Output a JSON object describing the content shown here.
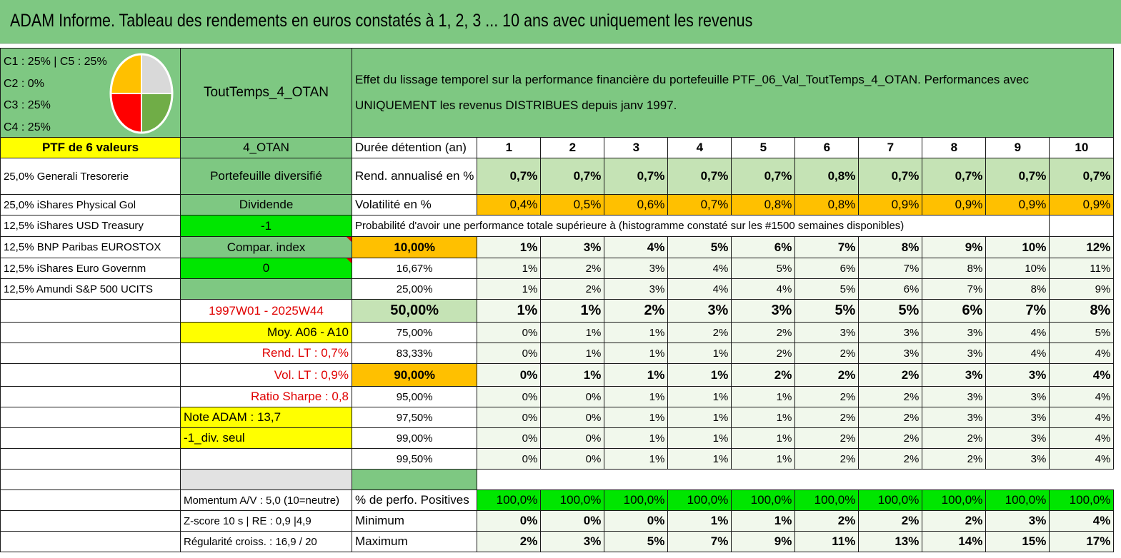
{
  "title": "ADAM Informe. Tableau des rendements en euros constatés à 1, 2, 3 ... 10 ans avec uniquement les revenus",
  "allocation": {
    "lines": [
      "C1 : 25% | C5 : 25%",
      "C2 : 0%",
      "C3 : 25%",
      "C4 : 25%"
    ],
    "pie_colors": [
      "#d9d9d9",
      "#70ad47",
      "#ff0000",
      "#ffc000"
    ],
    "pie_shares": [
      25,
      25,
      25,
      25
    ]
  },
  "portfolio_name": "ToutTemps_4_OTAN",
  "description": "Effet du lissage temporel sur la performance financière du portefeuille PTF_06_Val_ToutTemps_4_OTAN. Performances avec UNIQUEMENT les revenus DISTRIBUES depuis janv 1997.",
  "ptf_label": "PTF de 6 valeurs",
  "code": "4_OTAN",
  "duree_label": "Durée détention (an)",
  "years": [
    "1",
    "2",
    "3",
    "4",
    "5",
    "6",
    "7",
    "8",
    "9",
    "10"
  ],
  "holdings": [
    "25,0% Generali Tresorerie",
    "25,0% iShares Physical Gol",
    "12,5% iShares USD Treasury",
    "12,5% BNP Paribas EUROSTOX",
    "12,5% iShares Euro Governm",
    "12,5% Amundi S&P 500 UCITS"
  ],
  "side": {
    "diversifie": "Portefeuille diversifié",
    "dividende": "Dividende",
    "minus_one": "-1",
    "compar": "Compar. index",
    "zero": "0",
    "period": "1997W01 - 2025W44",
    "moy": "Moy. A06 - A10",
    "rend_lt": "Rend. LT : 0,7%",
    "vol_lt": "Vol. LT : 0,9%",
    "sharpe": "Ratio Sharpe : 0,8",
    "note": "Note ADAM : 13,7",
    "div_seul": "-1_div. seul",
    "momentum": "Momentum A/V : 5,0 (10=neutre)",
    "zscore": "Z-score 10 s | RE : 0,9 |4,9",
    "regularite": "Régularité croiss. : 16,9 / 20"
  },
  "rend": {
    "label": "Rend. annualisé en %",
    "values": [
      "0,7%",
      "0,7%",
      "0,7%",
      "0,7%",
      "0,7%",
      "0,8%",
      "0,7%",
      "0,7%",
      "0,7%",
      "0,7%"
    ]
  },
  "vol": {
    "label": "Volatilité en %",
    "values": [
      "0,4%",
      "0,5%",
      "0,6%",
      "0,7%",
      "0,8%",
      "0,8%",
      "0,9%",
      "0,9%",
      "0,9%",
      "0,9%"
    ]
  },
  "proba_label": "Probabilité d'avoir une performance totale supérieure à (histogramme constaté sur les #1500 semaines disponibles)",
  "proba_rows": [
    {
      "pct": "10,00%",
      "values": [
        "1%",
        "3%",
        "4%",
        "5%",
        "6%",
        "7%",
        "8%",
        "9%",
        "10%",
        "12%"
      ]
    },
    {
      "pct": "16,67%",
      "values": [
        "1%",
        "2%",
        "3%",
        "4%",
        "5%",
        "6%",
        "7%",
        "8%",
        "10%",
        "11%"
      ]
    },
    {
      "pct": "25,00%",
      "values": [
        "1%",
        "2%",
        "3%",
        "4%",
        "4%",
        "5%",
        "6%",
        "7%",
        "8%",
        "9%"
      ]
    },
    {
      "pct": "50,00%",
      "values": [
        "1%",
        "1%",
        "2%",
        "3%",
        "3%",
        "5%",
        "5%",
        "6%",
        "7%",
        "8%"
      ]
    },
    {
      "pct": "75,00%",
      "values": [
        "0%",
        "1%",
        "1%",
        "2%",
        "2%",
        "3%",
        "3%",
        "3%",
        "4%",
        "5%"
      ]
    },
    {
      "pct": "83,33%",
      "values": [
        "0%",
        "1%",
        "1%",
        "1%",
        "2%",
        "2%",
        "3%",
        "3%",
        "4%",
        "4%"
      ]
    },
    {
      "pct": "90,00%",
      "values": [
        "0%",
        "1%",
        "1%",
        "1%",
        "2%",
        "2%",
        "2%",
        "3%",
        "3%",
        "4%"
      ]
    },
    {
      "pct": "95,00%",
      "values": [
        "0%",
        "0%",
        "1%",
        "1%",
        "1%",
        "2%",
        "2%",
        "3%",
        "3%",
        "4%"
      ]
    },
    {
      "pct": "97,50%",
      "values": [
        "0%",
        "0%",
        "1%",
        "1%",
        "1%",
        "2%",
        "2%",
        "3%",
        "3%",
        "4%"
      ]
    },
    {
      "pct": "99,00%",
      "values": [
        "0%",
        "0%",
        "1%",
        "1%",
        "1%",
        "2%",
        "2%",
        "2%",
        "3%",
        "4%"
      ]
    },
    {
      "pct": "99,50%",
      "values": [
        "0%",
        "0%",
        "1%",
        "1%",
        "1%",
        "2%",
        "2%",
        "2%",
        "3%",
        "4%"
      ]
    }
  ],
  "positives": {
    "label": "% de perfo. Positives",
    "values": [
      "100,0%",
      "100,0%",
      "100,0%",
      "100,0%",
      "100,0%",
      "100,0%",
      "100,0%",
      "100,0%",
      "100,0%",
      "100,0%"
    ]
  },
  "minimum": {
    "label": "Minimum",
    "values": [
      "0%",
      "0%",
      "0%",
      "1%",
      "1%",
      "2%",
      "2%",
      "2%",
      "3%",
      "4%"
    ]
  },
  "maximum": {
    "label": "Maximum",
    "values": [
      "2%",
      "3%",
      "5%",
      "7%",
      "9%",
      "11%",
      "13%",
      "14%",
      "15%",
      "17%"
    ]
  }
}
